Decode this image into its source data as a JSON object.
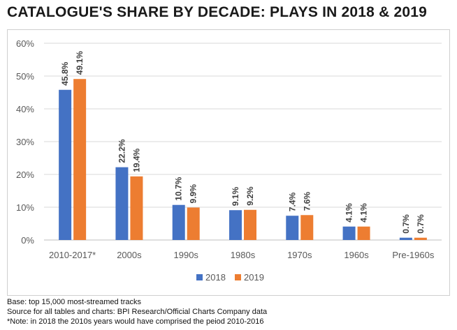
{
  "header": {
    "title": "CATALOGUE'S SHARE BY DECADE: PLAYS IN 2018 & 2019"
  },
  "chart_data": {
    "type": "bar",
    "title": "CATALOGUE'S SHARE BY DECADE: PLAYS IN 2018 & 2019",
    "categories": [
      "2010-2017*",
      "2000s",
      "1990s",
      "1980s",
      "1970s",
      "1960s",
      "Pre-1960s"
    ],
    "series": [
      {
        "name": "2018",
        "values": [
          45.8,
          22.2,
          10.7,
          9.1,
          7.4,
          4.1,
          0.7
        ],
        "labels": [
          "45.8%",
          "22.2%",
          "10.7%",
          "9.1%",
          "7.4%",
          "4.1%",
          "0.7%"
        ],
        "color": "#4472C4"
      },
      {
        "name": "2019",
        "values": [
          49.1,
          19.4,
          9.9,
          9.2,
          7.6,
          4.1,
          0.7
        ],
        "labels": [
          "49.1%",
          "19.4%",
          "9.9%",
          "9.2%",
          "7.6%",
          "4.1%",
          "0.7%"
        ],
        "color": "#ED7D31"
      }
    ],
    "yticks": [
      0,
      10,
      20,
      30,
      40,
      50,
      60
    ],
    "ytick_labels": [
      "0%",
      "10%",
      "20%",
      "30%",
      "40%",
      "50%",
      "60%"
    ],
    "ylim": [
      0,
      60
    ],
    "grid": true,
    "legend": "bottom"
  },
  "footnotes": {
    "base": "Base: top 15,000 most-streamed tracks",
    "source": "Source for all tables and charts: BPI Research/Official Charts Company data",
    "note": "*Note: in 2018 the 2010s years would have comprised the peiod 2010-2016"
  }
}
